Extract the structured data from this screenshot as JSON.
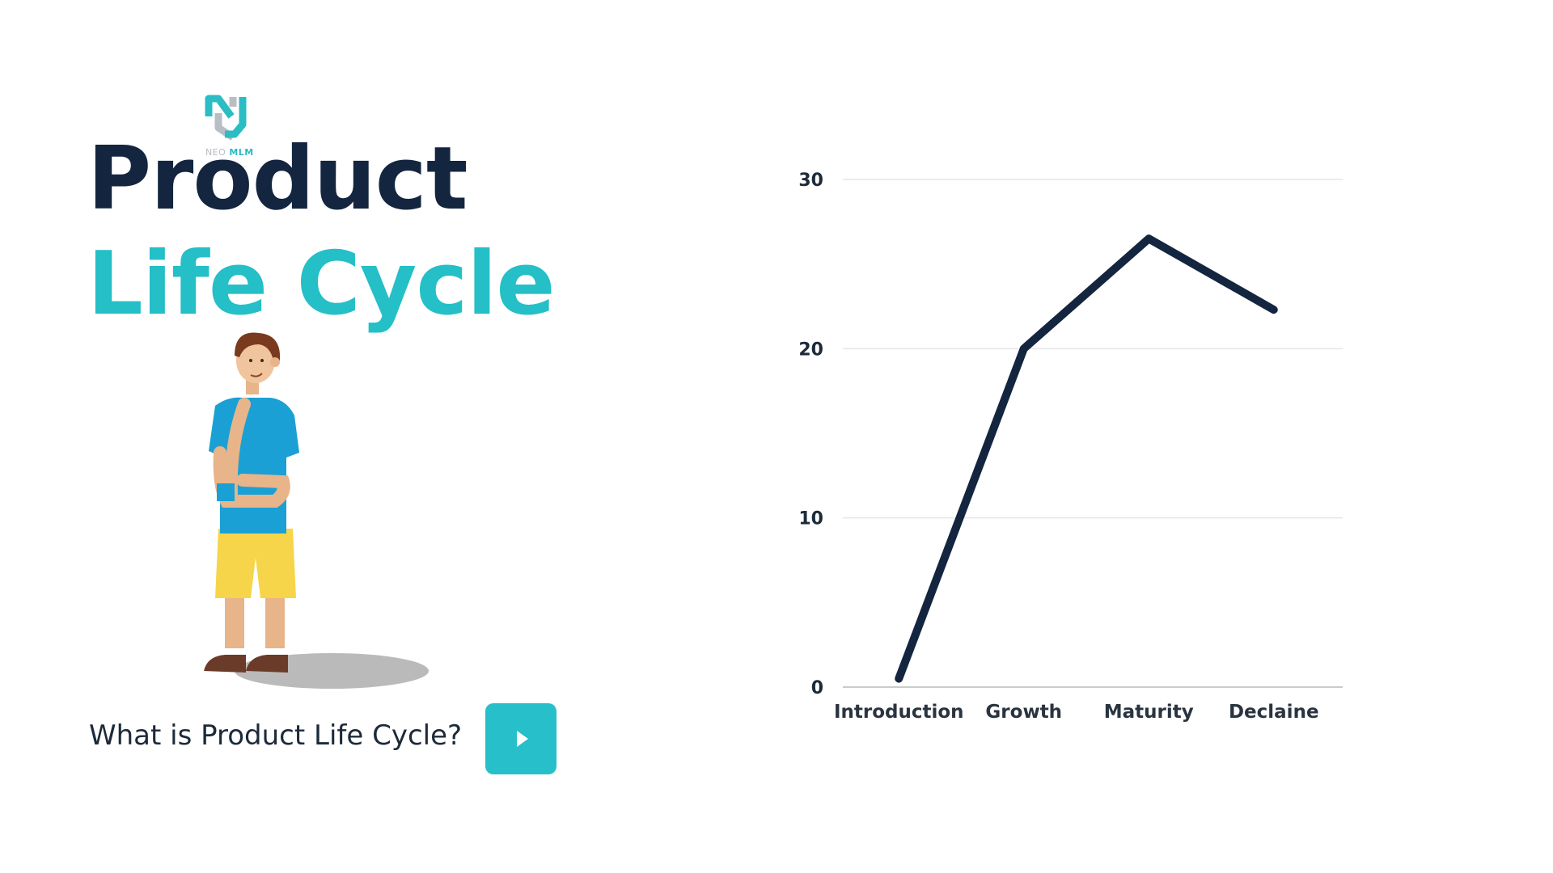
{
  "brand": {
    "logo_prefix": "NEO",
    "logo_name": "MLM"
  },
  "hero": {
    "title_line1": "Product",
    "title_line2": "Life Cycle",
    "question": "What is Product Life Cycle?",
    "play_icon": "play-icon"
  },
  "colors": {
    "navy": "#13253f",
    "teal": "#24bfc7",
    "line": "#13253f",
    "grid": "#e4e6e8"
  },
  "chart_data": {
    "type": "line",
    "title": "",
    "xlabel": "",
    "ylabel": "",
    "categories": [
      "Introduction",
      "Growth",
      "Maturity",
      "Declaine"
    ],
    "series": [
      {
        "values": [
          0.5,
          20,
          26.5,
          22.3
        ]
      }
    ],
    "yticks": [
      0,
      10,
      20,
      30
    ],
    "ylim": [
      0,
      30
    ],
    "grid": true,
    "legend": "none"
  }
}
